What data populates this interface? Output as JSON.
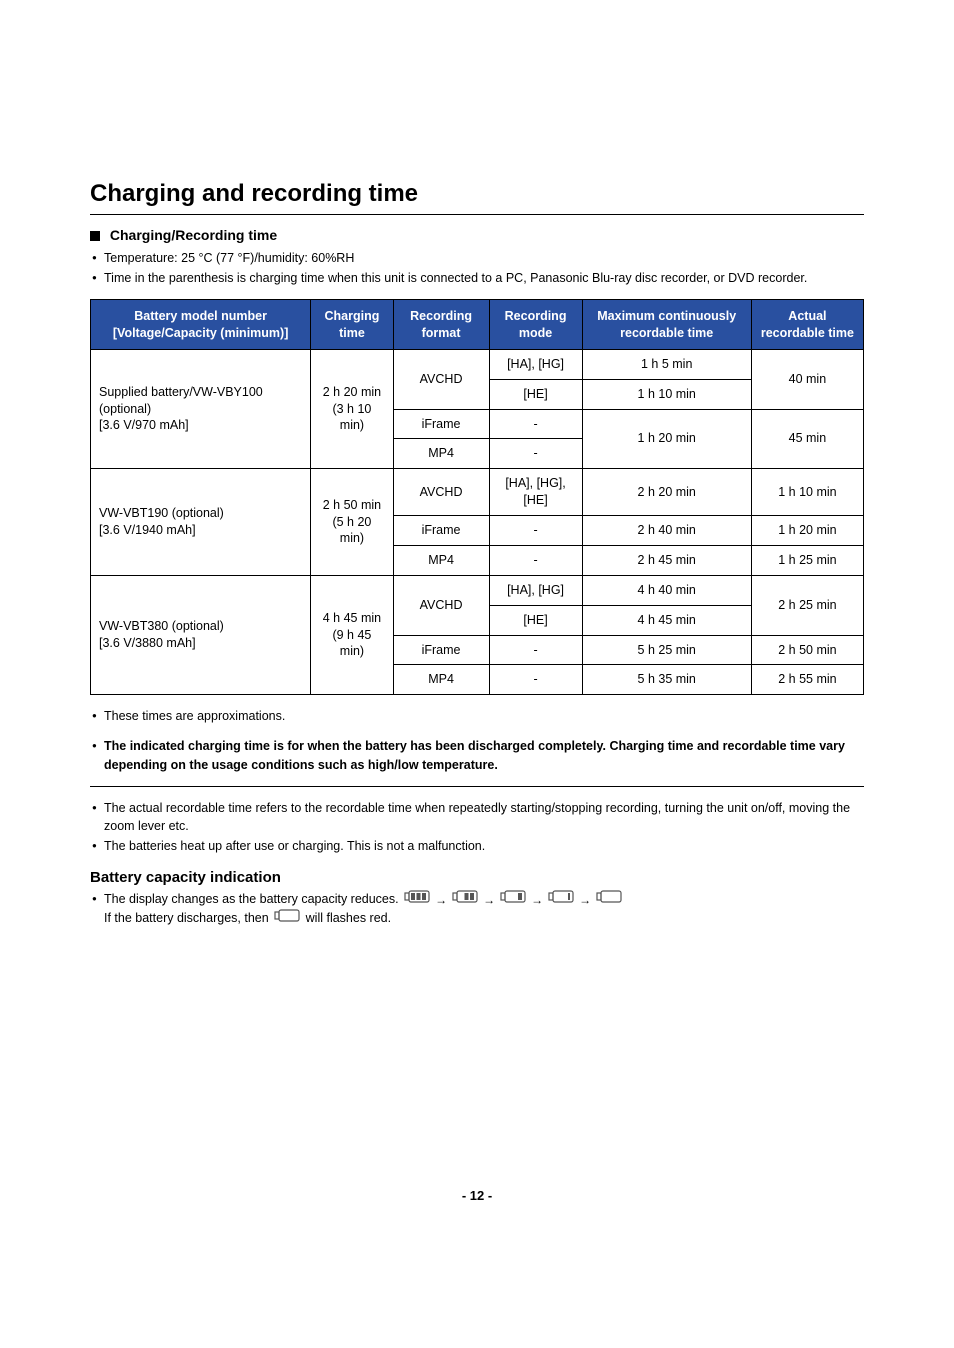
{
  "title": "Charging and recording time",
  "subheading": "Charging/Recording time",
  "intro_bullets": [
    "Temperature: 25 °C (77 °F)/humidity: 60%RH",
    "Time in the parenthesis is charging time when this unit is connected to a PC, Panasonic Blu-ray disc recorder, or DVD recorder."
  ],
  "table": {
    "header_bg": "#2950a0",
    "header_color": "#ffffff",
    "headers": [
      "Battery model number [Voltage/Capacity (minimum)]",
      "Charging time",
      "Recording format",
      "Recording mode",
      "Maximum continuously recordable time",
      "Actual recordable time"
    ],
    "groups": [
      {
        "battery": "Supplied battery/VW-VBY100 (optional)\n[3.6 V/970 mAh]",
        "charging": "2 h 20 min\n(3 h 10 min)",
        "rows": [
          {
            "format": "AVCHD",
            "mode": "[HA], [HG]",
            "max": "1 h 5 min",
            "actual": "40 min",
            "format_rowspan": 2,
            "actual_rowspan": 2
          },
          {
            "mode": "[HE]",
            "max": "1 h 10 min"
          },
          {
            "format": "iFrame",
            "mode": "-",
            "max": "1 h 20 min",
            "actual": "45 min",
            "max_rowspan": 2,
            "actual_rowspan": 2
          },
          {
            "format": "MP4",
            "mode": "-"
          }
        ]
      },
      {
        "battery": "VW-VBT190 (optional)\n[3.6 V/1940 mAh]",
        "charging": "2 h 50 min\n(5 h 20 min)",
        "rows": [
          {
            "format": "AVCHD",
            "mode": "[HA], [HG], [HE]",
            "max": "2 h 20 min",
            "actual": "1 h 10 min"
          },
          {
            "format": "iFrame",
            "mode": "-",
            "max": "2 h 40 min",
            "actual": "1 h 20 min"
          },
          {
            "format": "MP4",
            "mode": "-",
            "max": "2 h 45 min",
            "actual": "1 h 25 min"
          }
        ]
      },
      {
        "battery": "VW-VBT380 (optional)\n[3.6 V/3880 mAh]",
        "charging": "4 h 45 min\n(9 h 45 min)",
        "rows": [
          {
            "format": "AVCHD",
            "mode": "[HA], [HG]",
            "max": "4 h 40 min",
            "actual": "2 h 25 min",
            "format_rowspan": 2,
            "actual_rowspan": 2
          },
          {
            "mode": "[HE]",
            "max": "4 h 45 min"
          },
          {
            "format": "iFrame",
            "mode": "-",
            "max": "5 h 25 min",
            "actual": "2 h 50 min"
          },
          {
            "format": "MP4",
            "mode": "-",
            "max": "5 h 35 min",
            "actual": "2 h 55 min"
          }
        ]
      }
    ]
  },
  "approx_note": "These times are approximations.",
  "bold_note": "The indicated charging time is for when the battery has been discharged completely. Charging time and recordable time vary depending on the usage conditions such as high/low temperature.",
  "after_divider_bullets": [
    "The actual recordable time refers to the recordable time when repeatedly starting/stopping recording, turning the unit on/off, moving the zoom lever etc.",
    "The batteries heat up after use or charging. This is not a malfunction."
  ],
  "capacity_heading": "Battery capacity indication",
  "capacity_line1": "The display changes as the battery capacity reduces. ",
  "capacity_line2_prefix": "If the battery discharges, then ",
  "capacity_line2_suffix": " will flashes red.",
  "battery_levels": [
    3,
    2,
    1,
    0.5,
    0
  ],
  "page_number": "- 12 -"
}
